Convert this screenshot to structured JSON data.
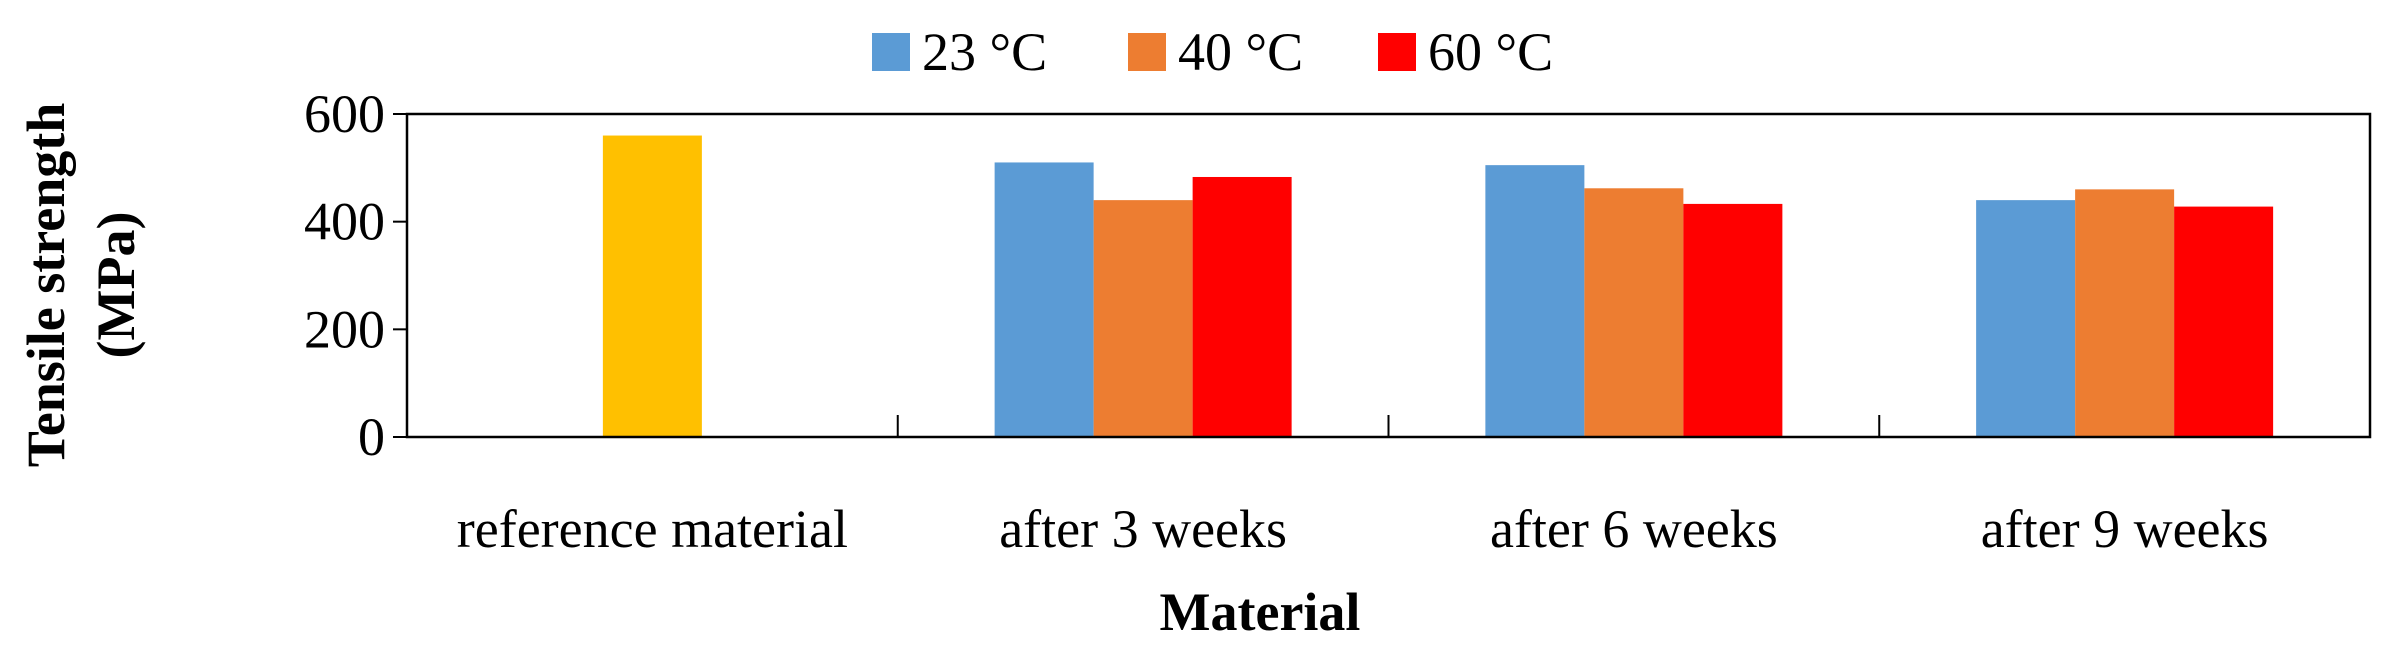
{
  "chart_data": {
    "type": "bar",
    "title": "",
    "xlabel": "Material",
    "ylabel_lines": [
      "Tensile strength",
      "(MPa)"
    ],
    "ylim": [
      0,
      600
    ],
    "yticks": [
      0,
      200,
      400,
      600
    ],
    "categories": [
      "reference material",
      "after 3 weeks",
      "after 6 weeks",
      "after 9 weeks"
    ],
    "reference": {
      "category": "reference material",
      "value": 560,
      "color": "#FFC000"
    },
    "series": [
      {
        "name": "23 °C",
        "color": "#5B9BD5",
        "values": [
          null,
          510,
          505,
          440
        ]
      },
      {
        "name": "40 °C",
        "color": "#ED7D31",
        "values": [
          null,
          440,
          462,
          460
        ]
      },
      {
        "name": "60 °C",
        "color": "#FF0000",
        "values": [
          null,
          483,
          433,
          428
        ]
      }
    ],
    "legend_position": "top-center",
    "grid": false
  }
}
